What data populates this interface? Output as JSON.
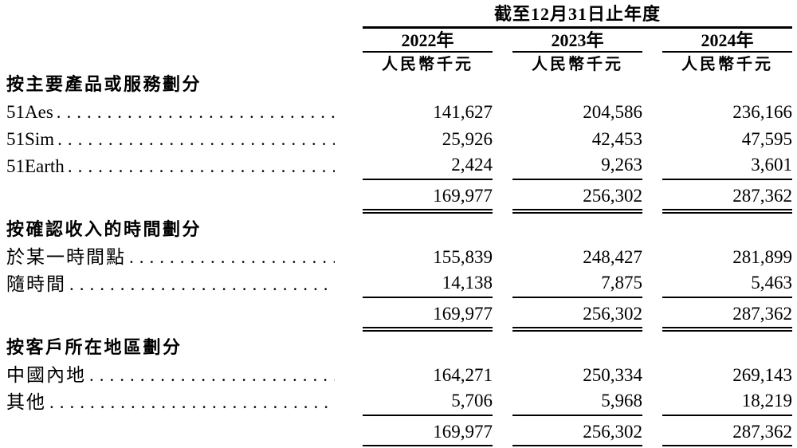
{
  "header": {
    "period_title": "截至12月31日止年度",
    "unit_label": "人民幣千元",
    "columns": [
      {
        "year": "2022年",
        "unit": "人民幣千元"
      },
      {
        "year": "2023年",
        "unit": "人民幣千元"
      },
      {
        "year": "2024年",
        "unit": "人民幣千元"
      }
    ]
  },
  "sections": [
    {
      "title": "按主要產品或服務劃分",
      "rows": [
        {
          "label": "51Aes",
          "values": [
            "141,627",
            "204,586",
            "236,166"
          ]
        },
        {
          "label": "51Sim",
          "values": [
            "25,926",
            "42,453",
            "47,595"
          ]
        },
        {
          "label": "51Earth",
          "values": [
            "2,424",
            "9,263",
            "3,601"
          ]
        }
      ],
      "total": {
        "values": [
          "169,977",
          "256,302",
          "287,362"
        ]
      }
    },
    {
      "title": "按確認收入的時間劃分",
      "rows": [
        {
          "label": "於某一時間點",
          "values": [
            "155,839",
            "248,427",
            "281,899"
          ]
        },
        {
          "label": "隨時間",
          "values": [
            "14,138",
            "7,875",
            "5,463"
          ]
        }
      ],
      "total": {
        "values": [
          "169,977",
          "256,302",
          "287,362"
        ]
      }
    },
    {
      "title": "按客戶所在地區劃分",
      "rows": [
        {
          "label": "中國內地",
          "values": [
            "164,271",
            "250,334",
            "269,143"
          ]
        },
        {
          "label": "其他",
          "values": [
            "5,706",
            "5,968",
            "18,219"
          ]
        }
      ],
      "total": {
        "values": [
          "169,977",
          "256,302",
          "287,362"
        ]
      }
    }
  ]
}
